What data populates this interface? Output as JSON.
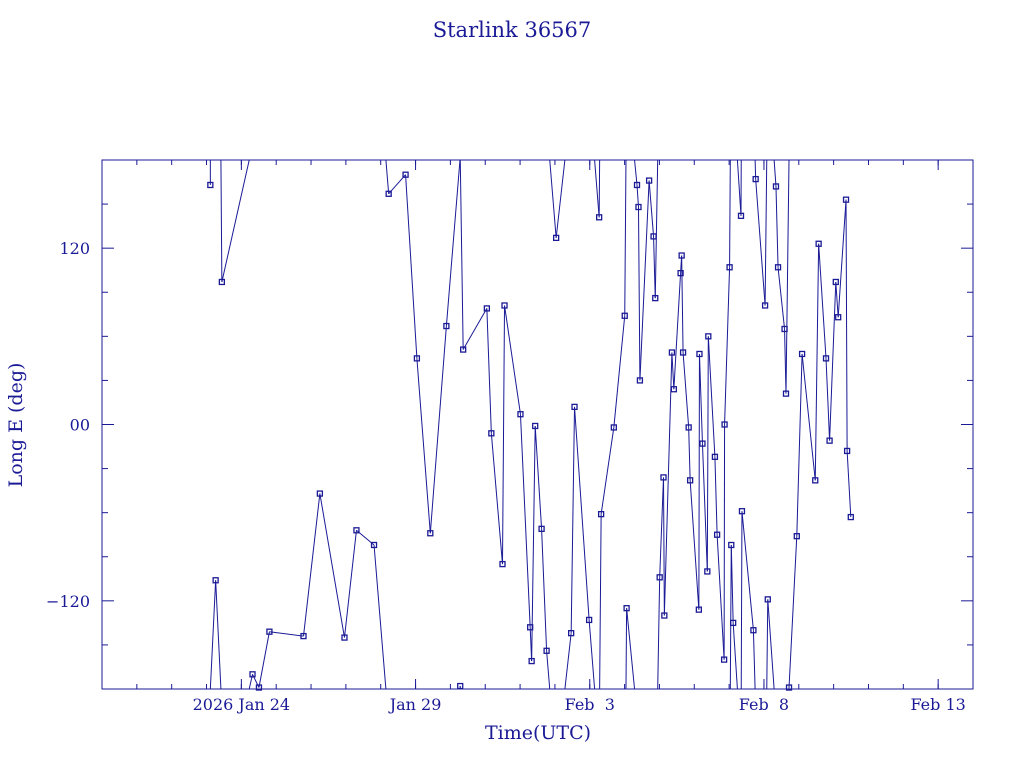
{
  "chart_data": {
    "type": "line",
    "title": "Starlink 36567",
    "xlabel": "Time(UTC)",
    "ylabel": "Long E (deg)",
    "xlim": [
      "2026-01-20T00:00",
      "2026-02-14T00:00"
    ],
    "ylim": [
      -180,
      180
    ],
    "x_ticks": [
      {
        "label": "2026 Jan 24",
        "value": "2026-01-24T00:00"
      },
      {
        "label": "Jan 29",
        "value": "2026-01-29T00:00"
      },
      {
        "label": "Feb  3",
        "value": "2026-02-03T00:00"
      },
      {
        "label": "Feb  8",
        "value": "2026-02-08T00:00"
      },
      {
        "label": "Feb 13",
        "value": "2026-02-13T00:00"
      }
    ],
    "y_ticks": [
      {
        "label": "120",
        "value": 120
      },
      {
        "label": "00",
        "value": 0
      },
      {
        "label": "−120",
        "value": -120
      }
    ],
    "wrap": [
      -180,
      180
    ],
    "series": [
      {
        "points": [
          [
            "2026-01-23T02:38",
            163
          ],
          [
            "2026-01-23T02:38",
            -180
          ],
          [
            "2026-01-23T06:17",
            -106
          ],
          [
            "2026-01-23T09:55",
            180
          ],
          [
            "2026-01-23T10:34",
            97
          ],
          [
            "2026-01-24T07:41",
            -170
          ],
          [
            "2026-01-24T12:07",
            -179
          ],
          [
            "2026-01-24T19:20",
            -141
          ],
          [
            "2026-01-25T18:48",
            -144
          ],
          [
            "2026-01-26T06:05",
            -47
          ],
          [
            "2026-01-26T23:02",
            -145
          ],
          [
            "2026-01-27T07:17",
            -72
          ],
          [
            "2026-01-27T19:24",
            -82
          ],
          [
            "2026-01-28T05:29",
            157
          ],
          [
            "2026-01-28T17:07",
            170
          ],
          [
            "2026-01-29T00:55",
            45
          ],
          [
            "2026-01-29T10:10",
            -74
          ],
          [
            "2026-01-29T21:14",
            67
          ],
          [
            "2026-01-30T06:46",
            -178
          ],
          [
            "2026-01-30T08:48",
            51
          ],
          [
            "2026-01-31T01:07",
            79
          ],
          [
            "2026-01-31T04:12",
            -6
          ],
          [
            "2026-01-31T11:53",
            -95
          ],
          [
            "2026-01-31T13:17",
            81
          ],
          [
            "2026-02-01T00:16",
            7
          ],
          [
            "2026-02-01T06:57",
            -138
          ],
          [
            "2026-02-01T07:58",
            -161
          ],
          [
            "2026-02-01T10:25",
            -1
          ],
          [
            "2026-02-01T14:49",
            -71
          ],
          [
            "2026-02-01T18:16",
            -154
          ],
          [
            "2026-02-02T00:51",
            127
          ],
          [
            "2026-02-02T11:11",
            -142
          ],
          [
            "2026-02-02T13:30",
            12
          ],
          [
            "2026-02-02T23:34",
            -133
          ],
          [
            "2026-02-03T06:28",
            141
          ],
          [
            "2026-02-03T07:50",
            -61
          ],
          [
            "2026-02-03T16:35",
            -2
          ],
          [
            "2026-02-04T00:06",
            74
          ],
          [
            "2026-02-04T01:23",
            -125
          ],
          [
            "2026-02-04T08:33",
            163
          ],
          [
            "2026-02-04T09:34",
            148
          ],
          [
            "2026-02-04T10:33",
            30
          ],
          [
            "2026-02-04T16:53",
            166
          ],
          [
            "2026-02-04T19:57",
            128
          ],
          [
            "2026-02-04T21:07",
            86
          ],
          [
            "2026-02-05T00:10",
            -104
          ],
          [
            "2026-02-05T02:48",
            -36
          ],
          [
            "2026-02-05T03:23",
            -130
          ],
          [
            "2026-02-05T08:35",
            49
          ],
          [
            "2026-02-05T09:56",
            24
          ],
          [
            "2026-02-05T14:34",
            103
          ],
          [
            "2026-02-05T15:18",
            115
          ],
          [
            "2026-02-05T16:17",
            49
          ],
          [
            "2026-02-05T20:08",
            -2
          ],
          [
            "2026-02-05T21:09",
            -38
          ],
          [
            "2026-02-06T03:09",
            -126
          ],
          [
            "2026-02-06T03:34",
            48
          ],
          [
            "2026-02-06T05:38",
            -13
          ],
          [
            "2026-02-06T08:59",
            -100
          ],
          [
            "2026-02-06T09:40",
            60
          ],
          [
            "2026-02-06T14:13",
            -22
          ],
          [
            "2026-02-06T15:44",
            -75
          ],
          [
            "2026-02-06T20:33",
            -160
          ],
          [
            "2026-02-06T20:52",
            0
          ],
          [
            "2026-02-07T00:19",
            107
          ],
          [
            "2026-02-07T01:29",
            -82
          ],
          [
            "2026-02-07T02:47",
            -135
          ],
          [
            "2026-02-07T08:11",
            142
          ],
          [
            "2026-02-07T08:51",
            -59
          ],
          [
            "2026-02-07T16:44",
            -140
          ],
          [
            "2026-02-07T18:17",
            167
          ],
          [
            "2026-02-08T00:47",
            81
          ],
          [
            "2026-02-08T02:38",
            -119
          ],
          [
            "2026-02-08T08:17",
            162
          ],
          [
            "2026-02-08T09:42",
            107
          ],
          [
            "2026-02-08T14:11",
            65
          ],
          [
            "2026-02-08T15:11",
            21
          ],
          [
            "2026-02-08T17:16",
            -179
          ],
          [
            "2026-02-08T22:37",
            -76
          ],
          [
            "2026-02-09T02:16",
            48
          ],
          [
            "2026-02-09T11:20",
            -38
          ],
          [
            "2026-02-09T13:40",
            123
          ],
          [
            "2026-02-09T18:45",
            45
          ],
          [
            "2026-02-09T21:12",
            -11
          ],
          [
            "2026-02-10T01:29",
            97
          ],
          [
            "2026-02-10T03:08",
            73
          ],
          [
            "2026-02-10T08:32",
            153
          ],
          [
            "2026-02-10T09:17",
            -18
          ],
          [
            "2026-02-10T11:49",
            -63
          ]
        ]
      }
    ]
  }
}
